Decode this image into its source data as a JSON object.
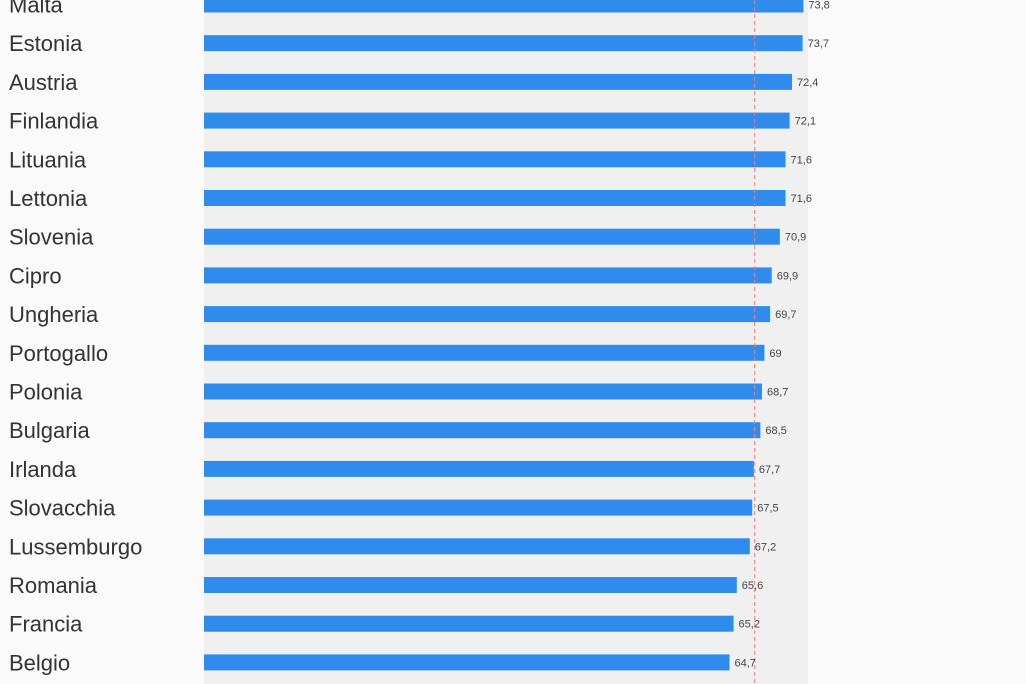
{
  "chart_data": {
    "type": "bar",
    "orientation": "horizontal",
    "title": "",
    "xlabel": "",
    "ylabel": "",
    "categories": [
      "Malta",
      "Estonia",
      "Austria",
      "Finlandia",
      "Lituania",
      "Lettonia",
      "Slovenia",
      "Cipro",
      "Ungheria",
      "Portogallo",
      "Polonia",
      "Bulgaria",
      "Irlanda",
      "Slovacchia",
      "Lussemburgo",
      "Romania",
      "Francia",
      "Belgio"
    ],
    "values": [
      73.8,
      73.7,
      72.4,
      72.1,
      71.6,
      71.6,
      70.9,
      69.9,
      69.7,
      69,
      68.7,
      68.5,
      67.7,
      67.5,
      67.2,
      65.6,
      65.2,
      64.7
    ],
    "value_labels": [
      "73,8",
      "73,7",
      "72,4",
      "72,1",
      "71,6",
      "71,6",
      "70,9",
      "69,9",
      "69,7",
      "69",
      "68,7",
      "68,5",
      "67,7",
      "67,5",
      "67,2",
      "65,6",
      "65,2",
      "64,7"
    ],
    "reference_line": 67.8,
    "xlim": [
      0,
      100
    ],
    "grid": false,
    "colors": {
      "bar": "#2f8ced",
      "plot_background": "#f0f0f0",
      "reference_line": "#f08080"
    }
  }
}
